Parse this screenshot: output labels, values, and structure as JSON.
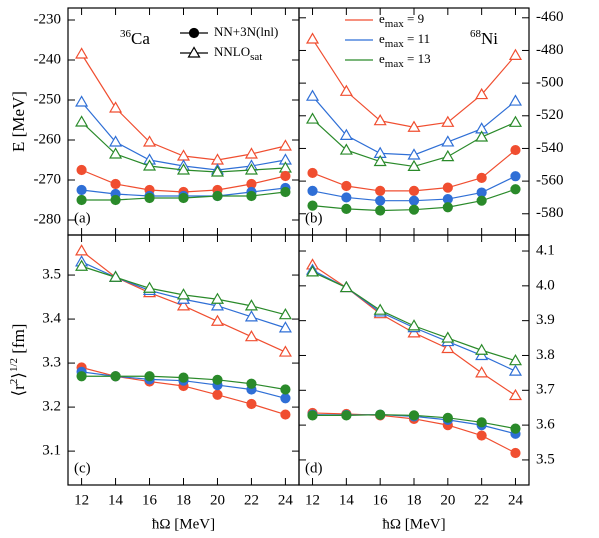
{
  "chart_data": [
    {
      "type": "line",
      "panel_label": "(a)",
      "nucleus": {
        "mass": "36",
        "element": "Ca"
      },
      "ylabel": [
        {
          "text": "E [MeV]"
        }
      ],
      "x": [
        12,
        14,
        16,
        18,
        20,
        22,
        24
      ],
      "xlim": [
        11.2,
        24.8
      ],
      "xticks": [
        12,
        14,
        16,
        18,
        20,
        22,
        24
      ],
      "show_xtick_labels": false,
      "ylim": [
        -283.75,
        -227
      ],
      "yticks": [
        -230,
        -240,
        -250,
        -260,
        -270,
        -280
      ],
      "yaxis_side": "left",
      "legend": [
        {
          "marker": "circle",
          "filled": true,
          "color": "#000000",
          "parts": [
            {
              "text": "NN+3N(lnl)"
            }
          ]
        },
        {
          "marker": "triangle",
          "filled": false,
          "color": "#000000",
          "parts": [
            {
              "text": "NNLO"
            },
            {
              "text": "sat",
              "sub": true
            }
          ]
        }
      ],
      "series": [
        {
          "color": "#f04e30",
          "marker": "triangle",
          "filled": false,
          "values": [
            -238.5,
            -252,
            -260.5,
            -264,
            -265,
            -263.5,
            -261.5
          ]
        },
        {
          "color": "#2f6fd6",
          "marker": "triangle",
          "filled": false,
          "values": [
            -250.5,
            -260.5,
            -265,
            -266.5,
            -267.5,
            -266.5,
            -265
          ]
        },
        {
          "color": "#2a8a2a",
          "marker": "triangle",
          "filled": false,
          "values": [
            -255.5,
            -263.5,
            -266.5,
            -267.5,
            -268,
            -267.5,
            -267
          ]
        },
        {
          "color": "#f04e30",
          "marker": "circle",
          "filled": true,
          "values": [
            -267.5,
            -271,
            -272.5,
            -273,
            -272.5,
            -271,
            -269
          ]
        },
        {
          "color": "#2f6fd6",
          "marker": "circle",
          "filled": true,
          "values": [
            -272.5,
            -273.5,
            -274,
            -274,
            -274,
            -273,
            -272
          ]
        },
        {
          "color": "#2a8a2a",
          "marker": "circle",
          "filled": true,
          "values": [
            -275,
            -275,
            -274.5,
            -274.5,
            -274,
            -274,
            -273
          ]
        }
      ]
    },
    {
      "type": "line",
      "panel_label": "(b)",
      "nucleus": {
        "mass": "68",
        "element": "Ni"
      },
      "x": [
        12,
        14,
        16,
        18,
        20,
        22,
        24
      ],
      "xlim": [
        11.2,
        24.8
      ],
      "xticks": [
        12,
        14,
        16,
        18,
        20,
        22,
        24
      ],
      "show_xtick_labels": false,
      "ylim": [
        -593,
        -454
      ],
      "yticks": [
        -460,
        -480,
        -500,
        -520,
        -540,
        -560,
        -580
      ],
      "yaxis_side": "right",
      "legend": [
        {
          "color": "#f04e30",
          "parts": [
            {
              "text": "e"
            },
            {
              "text": "max",
              "sub": true
            },
            {
              "text": " = 9"
            }
          ]
        },
        {
          "color": "#2f6fd6",
          "parts": [
            {
              "text": "e"
            },
            {
              "text": "max",
              "sub": true
            },
            {
              "text": " = 11"
            }
          ]
        },
        {
          "color": "#2a8a2a",
          "parts": [
            {
              "text": "e"
            },
            {
              "text": "max",
              "sub": true
            },
            {
              "text": " = 13"
            }
          ]
        }
      ],
      "series": [
        {
          "color": "#f04e30",
          "marker": "triangle",
          "filled": false,
          "values": [
            -473,
            -505,
            -523,
            -527,
            -524,
            -507,
            -483
          ]
        },
        {
          "color": "#2f6fd6",
          "marker": "triangle",
          "filled": false,
          "values": [
            -508,
            -532,
            -543,
            -544,
            -536,
            -528,
            -511
          ]
        },
        {
          "color": "#2a8a2a",
          "marker": "triangle",
          "filled": false,
          "values": [
            -522,
            -541,
            -548,
            -551,
            -545,
            -533,
            -524
          ]
        },
        {
          "color": "#f04e30",
          "marker": "circle",
          "filled": true,
          "values": [
            -555,
            -563,
            -566,
            -566,
            -564,
            -558,
            -541
          ]
        },
        {
          "color": "#2f6fd6",
          "marker": "circle",
          "filled": true,
          "values": [
            -566,
            -570,
            -572,
            -572,
            -571,
            -567,
            -557
          ]
        },
        {
          "color": "#2a8a2a",
          "marker": "circle",
          "filled": true,
          "values": [
            -575,
            -577,
            -578,
            -577.5,
            -576,
            -572,
            -565
          ]
        }
      ]
    },
    {
      "type": "line",
      "panel_label": "(c)",
      "ylabel": [
        {
          "text": "⟨r"
        },
        {
          "text": "2",
          "sup": true
        },
        {
          "text": "⟩"
        },
        {
          "text": "1/2",
          "sup": true
        },
        {
          "text": " [fm]"
        }
      ],
      "xlabel": "ħΩ [MeV]",
      "x": [
        12,
        14,
        16,
        18,
        20,
        22,
        24
      ],
      "xlim": [
        11.2,
        24.8
      ],
      "xticks": [
        12,
        14,
        16,
        18,
        20,
        22,
        24
      ],
      "show_xtick_labels": true,
      "ylim": [
        3.023,
        3.591
      ],
      "yticks": [
        3.1,
        3.2,
        3.3,
        3.4,
        3.5
      ],
      "yaxis_side": "left",
      "series": [
        {
          "color": "#f04e30",
          "marker": "triangle",
          "filled": false,
          "values": [
            3.555,
            3.495,
            3.46,
            3.43,
            3.395,
            3.36,
            3.325
          ]
        },
        {
          "color": "#2f6fd6",
          "marker": "triangle",
          "filled": false,
          "values": [
            3.53,
            3.495,
            3.465,
            3.445,
            3.43,
            3.405,
            3.38
          ]
        },
        {
          "color": "#2a8a2a",
          "marker": "triangle",
          "filled": false,
          "values": [
            3.52,
            3.495,
            3.47,
            3.455,
            3.445,
            3.43,
            3.41
          ]
        },
        {
          "color": "#f04e30",
          "marker": "circle",
          "filled": true,
          "values": [
            3.29,
            3.27,
            3.258,
            3.248,
            3.228,
            3.207,
            3.183
          ]
        },
        {
          "color": "#2f6fd6",
          "marker": "circle",
          "filled": true,
          "values": [
            3.28,
            3.27,
            3.263,
            3.26,
            3.25,
            3.24,
            3.22
          ]
        },
        {
          "color": "#2a8a2a",
          "marker": "circle",
          "filled": true,
          "values": [
            3.27,
            3.27,
            3.27,
            3.267,
            3.262,
            3.253,
            3.24
          ]
        }
      ]
    },
    {
      "type": "line",
      "panel_label": "(d)",
      "xlabel": "ħΩ [MeV]",
      "x": [
        12,
        14,
        16,
        18,
        20,
        22,
        24
      ],
      "xlim": [
        11.2,
        24.8
      ],
      "xticks": [
        12,
        14,
        16,
        18,
        20,
        22,
        24
      ],
      "show_xtick_labels": true,
      "ylim": [
        3.428,
        4.146
      ],
      "yticks": [
        3.5,
        3.6,
        3.7,
        3.8,
        3.9,
        {
          "value": 4,
          "label": "4.0"
        },
        4.1
      ],
      "yaxis_side": "right",
      "series": [
        {
          "color": "#f04e30",
          "marker": "triangle",
          "filled": false,
          "values": [
            4.06,
            3.995,
            3.92,
            3.865,
            3.82,
            3.75,
            3.685
          ]
        },
        {
          "color": "#2f6fd6",
          "marker": "triangle",
          "filled": false,
          "values": [
            4.045,
            3.995,
            3.925,
            3.88,
            3.84,
            3.8,
            3.755
          ]
        },
        {
          "color": "#2a8a2a",
          "marker": "triangle",
          "filled": false,
          "values": [
            4.04,
            3.995,
            3.93,
            3.885,
            3.85,
            3.815,
            3.785
          ]
        },
        {
          "color": "#f04e30",
          "marker": "circle",
          "filled": true,
          "values": [
            3.635,
            3.632,
            3.628,
            3.618,
            3.6,
            3.57,
            3.52
          ]
        },
        {
          "color": "#2f6fd6",
          "marker": "circle",
          "filled": true,
          "values": [
            3.63,
            3.629,
            3.63,
            3.625,
            3.615,
            3.6,
            3.575
          ]
        },
        {
          "color": "#2a8a2a",
          "marker": "circle",
          "filled": true,
          "values": [
            3.628,
            3.628,
            3.63,
            3.628,
            3.621,
            3.608,
            3.59
          ]
        }
      ]
    }
  ]
}
